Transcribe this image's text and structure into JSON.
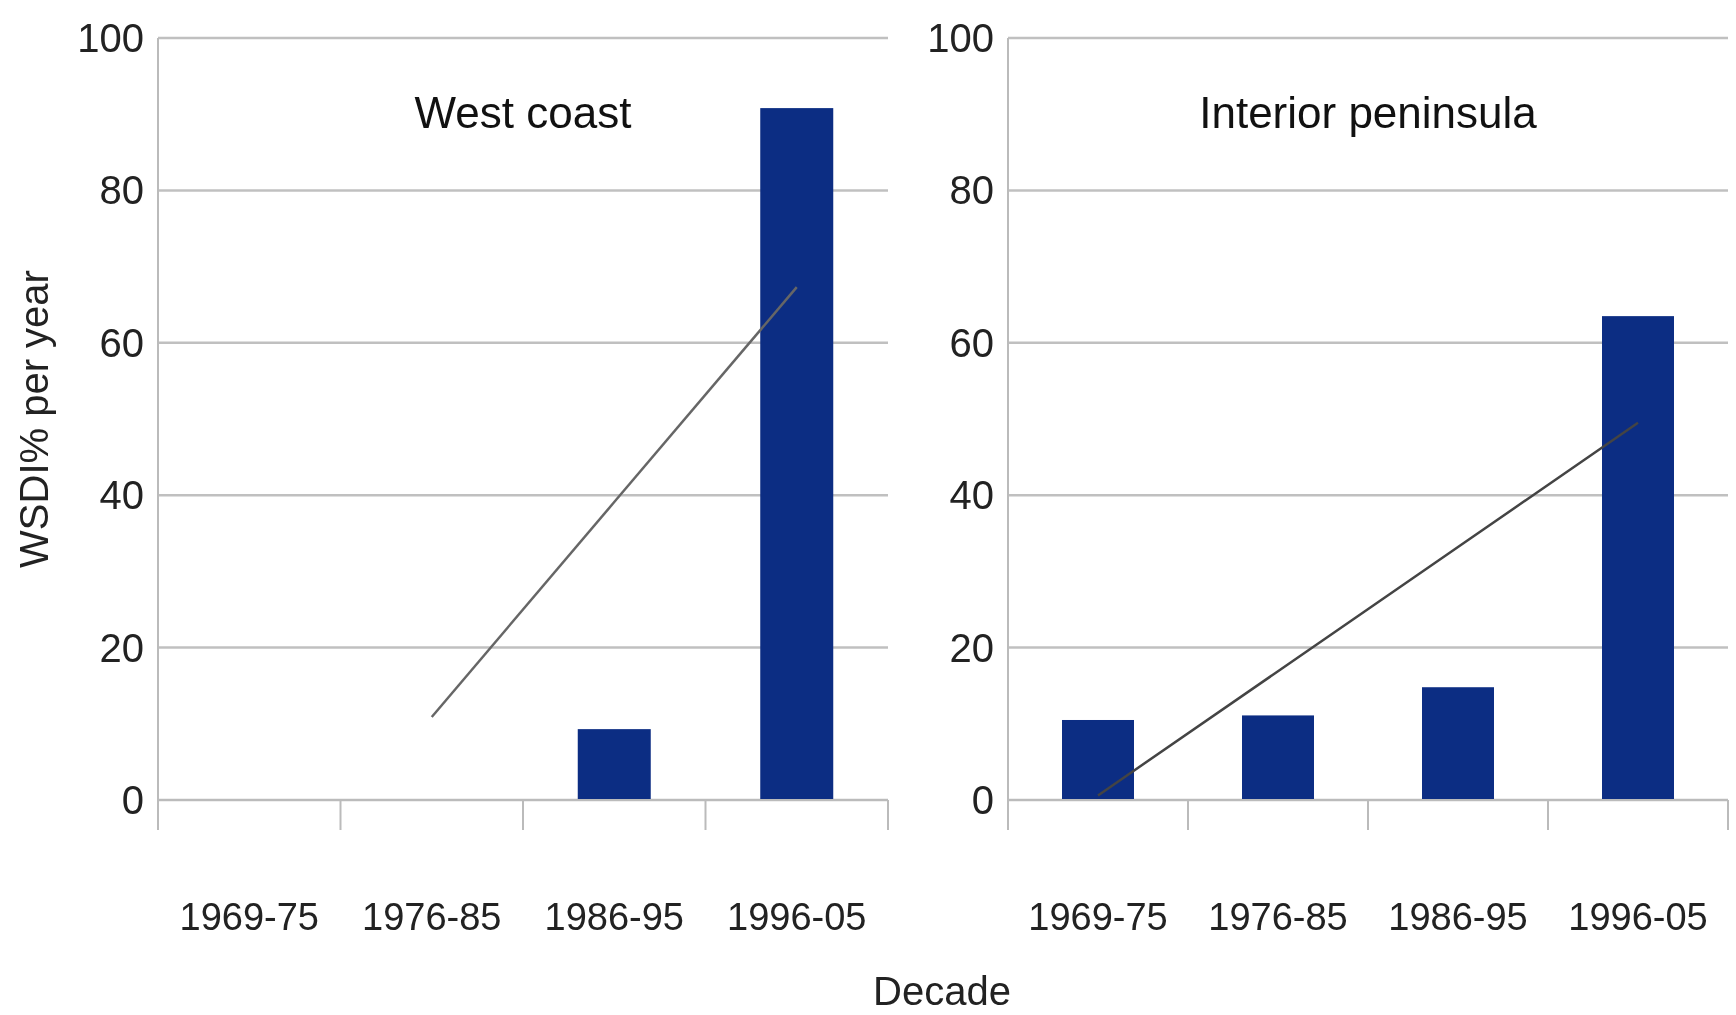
{
  "chart_data": [
    {
      "type": "bar",
      "title": "West coast",
      "ylabel": "WSDI% per year",
      "xlabel": "Decade",
      "categories": [
        "1969-75",
        "1976-85",
        "1986-95",
        "1996-05"
      ],
      "series": [
        {
          "color": "#0c2d83",
          "values": [
            0,
            0,
            9.3,
            90.8
          ]
        },
        {
          "type": "line",
          "color": "#666666",
          "values": [
            null,
            10.9,
            39.1,
            67.3
          ]
        }
      ],
      "ylim": [
        0,
        100
      ],
      "yticks": [
        0,
        20,
        40,
        60,
        80,
        100
      ],
      "grid": "y",
      "marker": "none"
    },
    {
      "type": "bar",
      "title": "Interior peninsula",
      "categories": [
        "1969-75",
        "1976-85",
        "1986-95",
        "1996-05"
      ],
      "series": [
        {
          "color": "#0c2d83",
          "values": [
            10.5,
            11.1,
            14.8,
            63.5
          ]
        },
        {
          "type": "line",
          "color": "#444444",
          "values": [
            0.6,
            16.9,
            33.2,
            49.5
          ]
        }
      ],
      "ylim": [
        0,
        100
      ],
      "yticks": [
        0,
        20,
        40,
        60,
        80,
        100
      ],
      "grid": "y",
      "marker": "none"
    }
  ]
}
